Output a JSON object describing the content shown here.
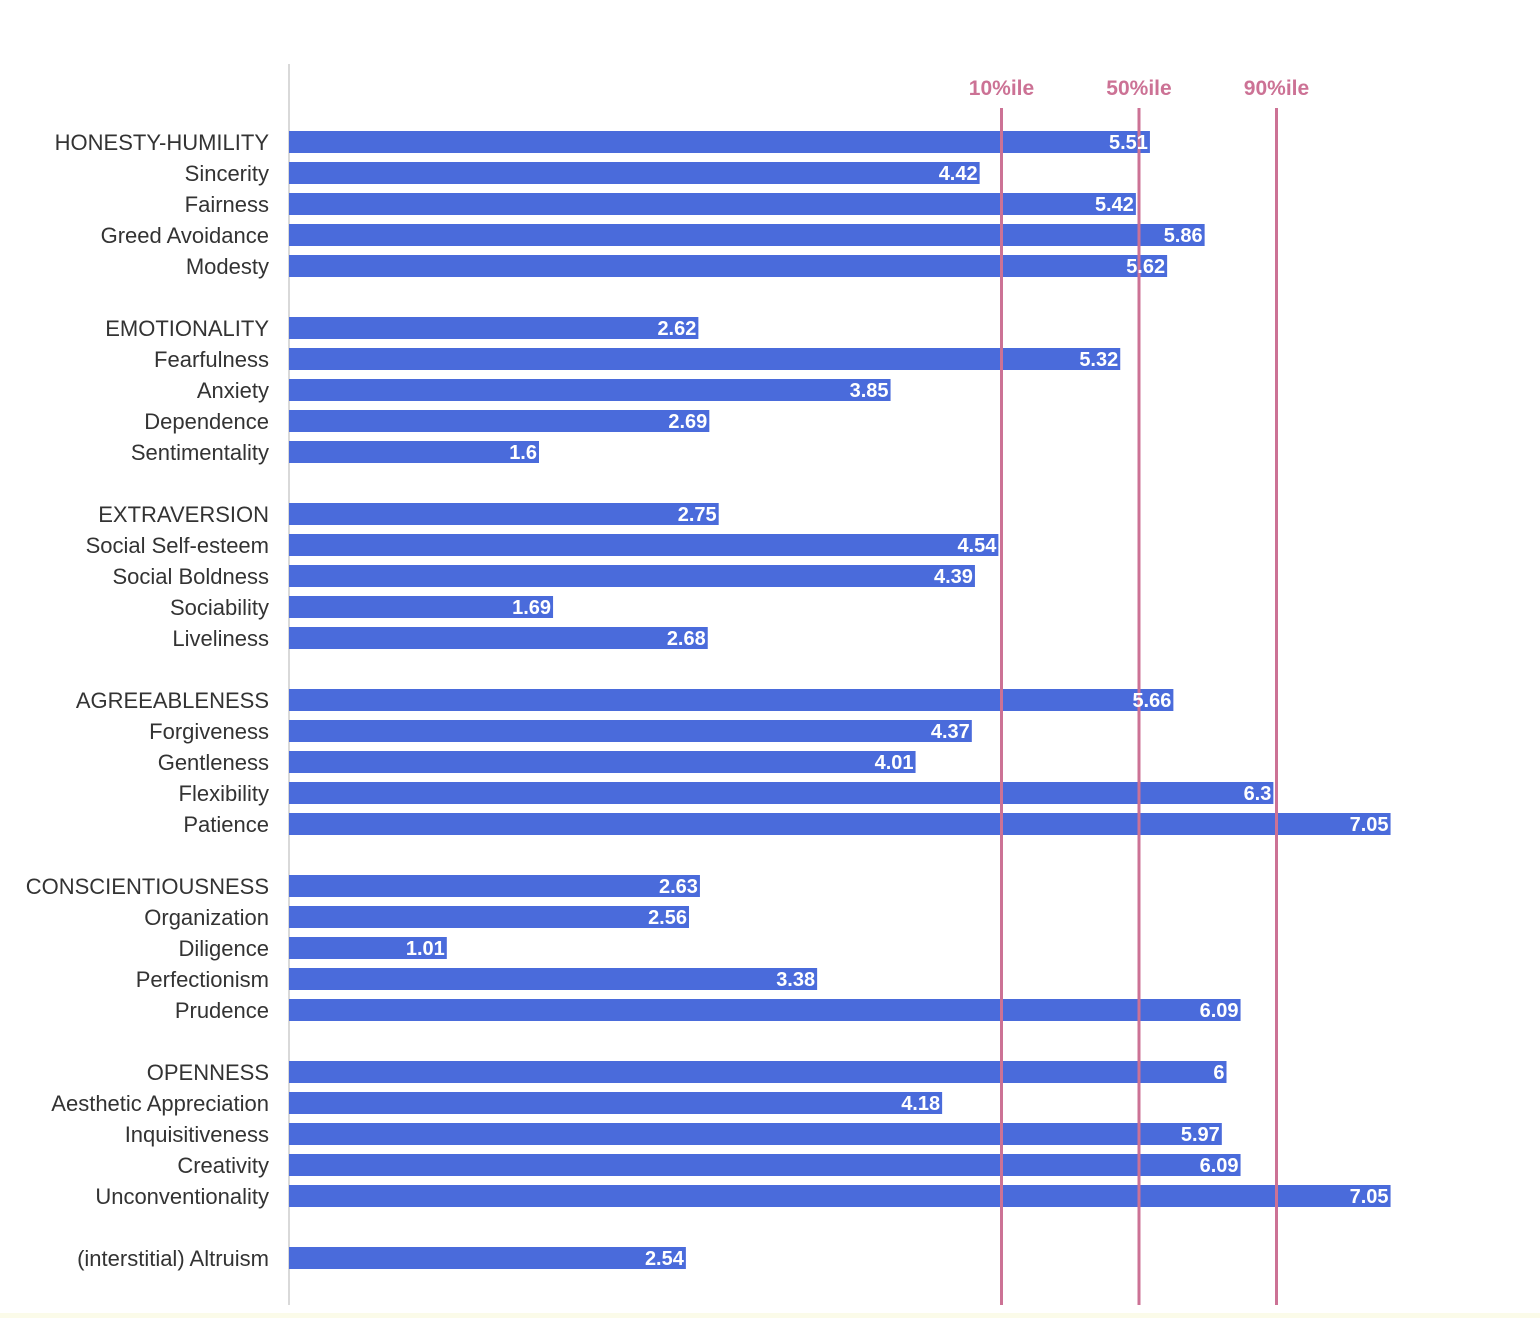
{
  "colors": {
    "bar": "#4a6bdb",
    "reference_line": "#cc7295",
    "label_text": "#333333",
    "value_text": "#ffffff",
    "axis_line": "#d9d9d9"
  },
  "chart_data": {
    "type": "bar",
    "orientation": "horizontal",
    "title": "",
    "xlabel": "",
    "ylabel": "",
    "xlim": [
      0,
      8
    ],
    "grid": false,
    "legend": "none",
    "data_labels": true,
    "reference_lines": [
      {
        "label": "10%ile",
        "value": 4.56
      },
      {
        "label": "50%ile",
        "value": 5.44
      },
      {
        "label": "90%ile",
        "value": 6.32
      }
    ],
    "groups": [
      {
        "items": [
          {
            "label": "HONESTY-HUMILITY",
            "value": 5.51
          },
          {
            "label": "Sincerity",
            "value": 4.42
          },
          {
            "label": "Fairness",
            "value": 5.42
          },
          {
            "label": "Greed Avoidance",
            "value": 5.86
          },
          {
            "label": "Modesty",
            "value": 5.62
          }
        ]
      },
      {
        "items": [
          {
            "label": "EMOTIONALITY",
            "value": 2.62
          },
          {
            "label": "Fearfulness",
            "value": 5.32
          },
          {
            "label": "Anxiety",
            "value": 3.85
          },
          {
            "label": "Dependence",
            "value": 2.69
          },
          {
            "label": "Sentimentality",
            "value": 1.6
          }
        ]
      },
      {
        "items": [
          {
            "label": "EXTRAVERSION",
            "value": 2.75
          },
          {
            "label": "Social Self-esteem",
            "value": 4.54
          },
          {
            "label": "Social Boldness",
            "value": 4.39
          },
          {
            "label": "Sociability",
            "value": 1.69
          },
          {
            "label": "Liveliness",
            "value": 2.68
          }
        ]
      },
      {
        "items": [
          {
            "label": "AGREEABLENESS",
            "value": 5.66
          },
          {
            "label": "Forgiveness",
            "value": 4.37
          },
          {
            "label": "Gentleness",
            "value": 4.01
          },
          {
            "label": "Flexibility",
            "value": 6.3
          },
          {
            "label": "Patience",
            "value": 7.05
          }
        ]
      },
      {
        "items": [
          {
            "label": "CONSCIENTIOUSNESS",
            "value": 2.63
          },
          {
            "label": "Organization",
            "value": 2.56
          },
          {
            "label": "Diligence",
            "value": 1.01
          },
          {
            "label": "Perfectionism",
            "value": 3.38
          },
          {
            "label": "Prudence",
            "value": 6.09
          }
        ]
      },
      {
        "items": [
          {
            "label": "OPENNESS",
            "value": 6
          },
          {
            "label": "Aesthetic Appreciation",
            "value": 4.18
          },
          {
            "label": "Inquisitiveness",
            "value": 5.97
          },
          {
            "label": "Creativity",
            "value": 6.09
          },
          {
            "label": "Unconventionality",
            "value": 7.05
          }
        ]
      },
      {
        "items": [
          {
            "label": "(interstitial) Altruism",
            "value": 2.54
          }
        ]
      }
    ]
  }
}
